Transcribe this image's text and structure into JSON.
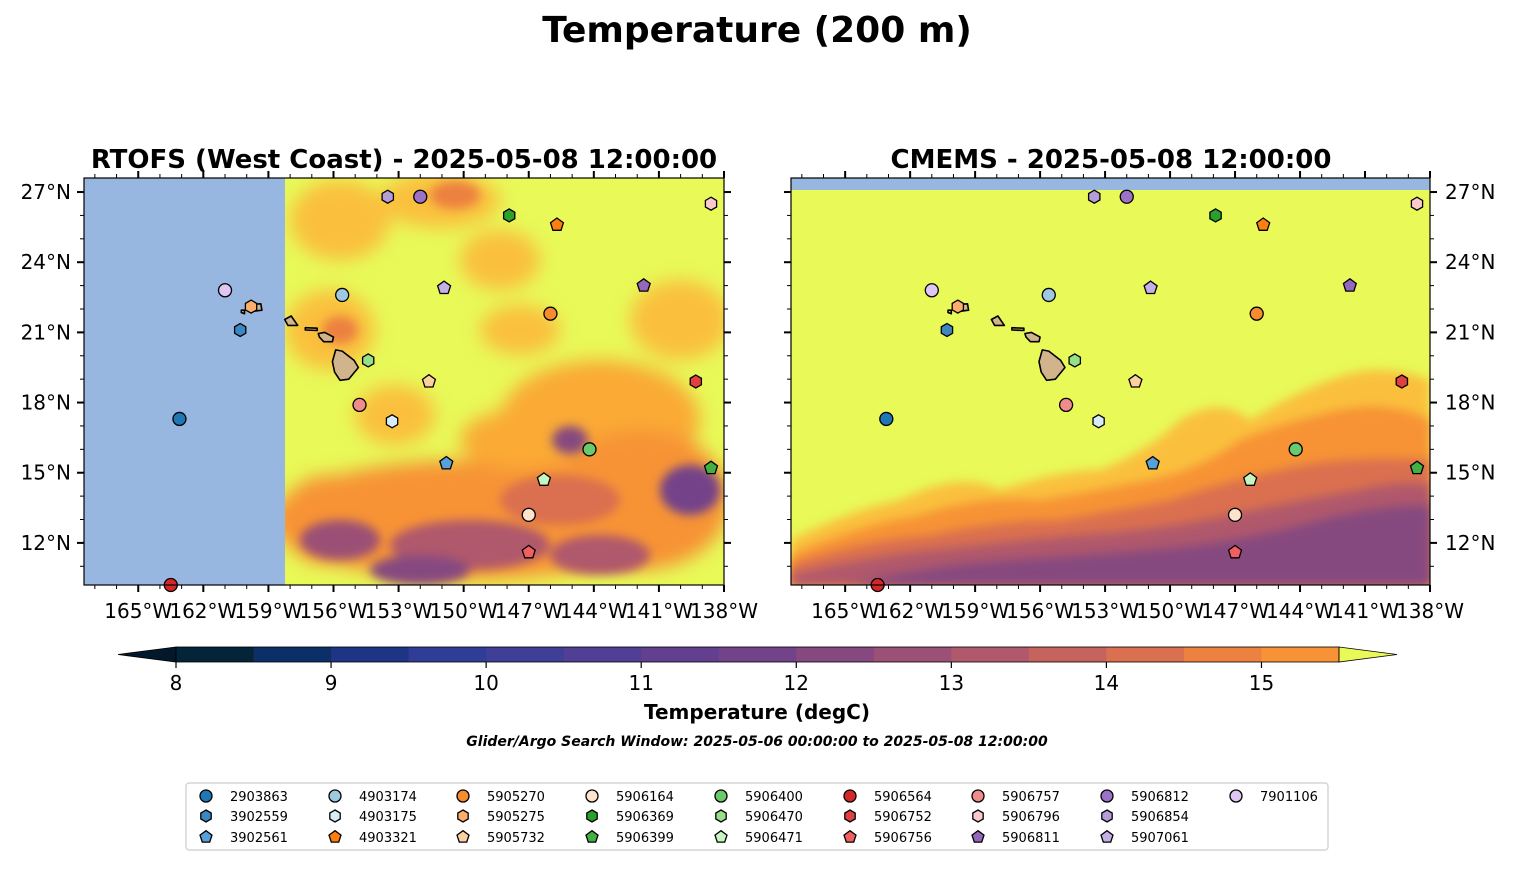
{
  "figure": {
    "suptitle": "Temperature (200 m)",
    "search_window": "Glider/Argo Search Window: 2025-05-06 00:00:00 to 2025-05-08 12:00:00"
  },
  "chart_data": {
    "type": "map",
    "colors": {
      "land": "#d2b48c",
      "nodata": "#97b6e0",
      "above_max": "#e8f958",
      "below_min": "#04182b"
    },
    "lon_ticks": [
      -165,
      -162,
      -159,
      -156,
      -153,
      -150,
      -147,
      -144,
      -141,
      -138
    ],
    "lon_tick_labels": [
      "165°W",
      "162°W",
      "159°W",
      "156°W",
      "153°W",
      "150°W",
      "147°W",
      "144°W",
      "141°W",
      "138°W"
    ],
    "lat_ticks": [
      12,
      15,
      18,
      21,
      24,
      27
    ],
    "lat_tick_labels": [
      "12°N",
      "15°N",
      "18°N",
      "21°N",
      "24°N",
      "27°N"
    ],
    "lon_range": [
      -167.5,
      -138.0
    ],
    "lat_range": [
      10.2,
      27.6
    ],
    "panels": [
      {
        "title": "RTOFS (West Coast) - 2025-05-08 12:00:00",
        "model": "RTOFS",
        "lat_label_side": "left",
        "data_lon_min": -158.2
      },
      {
        "title": "CMEMS - 2025-05-08 12:00:00",
        "model": "CMEMS",
        "lat_label_side": "right",
        "data_lat_max": 27.1
      }
    ],
    "colorbar": {
      "label": "Temperature (degC)",
      "min": 8,
      "max": 15.5,
      "step": 0.5,
      "ticks": [
        8,
        9,
        10,
        11,
        12,
        13,
        14,
        15
      ],
      "tick_labels": [
        "8",
        "9",
        "10",
        "11",
        "12",
        "13",
        "14",
        "15"
      ],
      "level_colors": [
        "#04243a",
        "#0b2f66",
        "#1e3586",
        "#2f3d96",
        "#3f3f98",
        "#513f95",
        "#623f8f",
        "#734389",
        "#86497f",
        "#9b5076",
        "#b0596c",
        "#c5635f",
        "#da7050",
        "#ec8140",
        "#f79336",
        "#faaa36",
        "#fac03d",
        "#f7d34a"
      ],
      "extend": "both"
    },
    "floats": [
      {
        "id": "2903863",
        "lon": -163.1,
        "lat": 17.3,
        "color": "#1f77b4",
        "marker": "circle"
      },
      {
        "id": "3902559",
        "lon": -160.3,
        "lat": 21.1,
        "color": "#3b87c2",
        "marker": "hexagon"
      },
      {
        "id": "3902561",
        "lon": -150.8,
        "lat": 15.4,
        "color": "#5aa0d8",
        "marker": "pentagon"
      },
      {
        "id": "4903174",
        "lon": -155.6,
        "lat": 22.6,
        "color": "#9ecae1",
        "marker": "circle"
      },
      {
        "id": "4903175",
        "lon": -153.3,
        "lat": 17.2,
        "color": "#d7ecf7",
        "marker": "hexagon"
      },
      {
        "id": "4903321",
        "lon": -145.7,
        "lat": 25.6,
        "color": "#ff7f0e",
        "marker": "pentagon"
      },
      {
        "id": "5905270",
        "lon": -146.0,
        "lat": 21.8,
        "color": "#f58c2e",
        "marker": "circle"
      },
      {
        "id": "5905275",
        "lon": -159.8,
        "lat": 22.1,
        "color": "#fdae6b",
        "marker": "hexagon"
      },
      {
        "id": "5905732",
        "lon": -151.6,
        "lat": 18.9,
        "color": "#fdd0a2",
        "marker": "pentagon"
      },
      {
        "id": "5906164",
        "lon": -147.0,
        "lat": 13.2,
        "color": "#fde3cc",
        "marker": "circle"
      },
      {
        "id": "5906369",
        "lon": -147.9,
        "lat": 26.0,
        "color": "#2ca02c",
        "marker": "hexagon"
      },
      {
        "id": "5906399",
        "lon": -138.6,
        "lat": 15.2,
        "color": "#42b042",
        "marker": "pentagon"
      },
      {
        "id": "5906400",
        "lon": -144.2,
        "lat": 16.0,
        "color": "#6ac96a",
        "marker": "circle"
      },
      {
        "id": "5906470",
        "lon": -154.4,
        "lat": 19.8,
        "color": "#98df8a",
        "marker": "hexagon"
      },
      {
        "id": "5906471",
        "lon": -146.3,
        "lat": 14.7,
        "color": "#c7f5c0",
        "marker": "pentagon"
      },
      {
        "id": "5906564",
        "lon": -163.5,
        "lat": 10.2,
        "color": "#d62728",
        "marker": "circle"
      },
      {
        "id": "5906752",
        "lon": -139.3,
        "lat": 18.9,
        "color": "#e04040",
        "marker": "hexagon"
      },
      {
        "id": "5906756",
        "lon": -147.0,
        "lat": 11.6,
        "color": "#f06060",
        "marker": "pentagon"
      },
      {
        "id": "5906757",
        "lon": -154.8,
        "lat": 17.9,
        "color": "#f08c8c",
        "marker": "circle"
      },
      {
        "id": "5906796",
        "lon": -138.6,
        "lat": 26.5,
        "color": "#fbc9c9",
        "marker": "hexagon"
      },
      {
        "id": "5906811",
        "lon": -141.7,
        "lat": 23.0,
        "color": "#9467bd",
        "marker": "pentagon"
      },
      {
        "id": "5906812",
        "lon": -152.0,
        "lat": 26.8,
        "color": "#9c72c6",
        "marker": "circle"
      },
      {
        "id": "5906854",
        "lon": -153.5,
        "lat": 26.8,
        "color": "#b79dd8",
        "marker": "hexagon"
      },
      {
        "id": "5907061",
        "lon": -150.9,
        "lat": 22.9,
        "color": "#c5b0e5",
        "marker": "pentagon"
      },
      {
        "id": "7901106",
        "lon": -161.0,
        "lat": 22.8,
        "color": "#e0c6f2",
        "marker": "circle"
      }
    ]
  }
}
